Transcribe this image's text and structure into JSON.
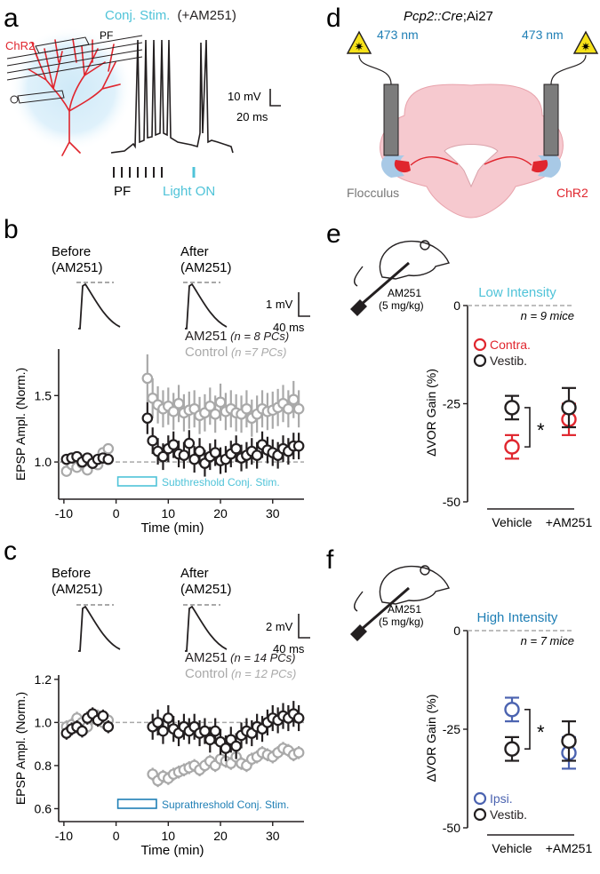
{
  "panels": {
    "a": {
      "letter": "a",
      "title_main": "Conj. Stim.",
      "title_drug": "(+AM251)",
      "pf_label": "PF",
      "chr2_label": "ChR2",
      "pf_axis_label": "PF",
      "light_label": "Light ON",
      "scale_v": "10 mV",
      "scale_t": "20 ms"
    },
    "b": {
      "letter": "b",
      "before_label_1": "Before",
      "before_label_2": "(AM251)",
      "after_label_1": "After",
      "after_label_2": "(AM251)",
      "scale_v": "1 mV",
      "scale_t": "40 ms"
    },
    "c": {
      "letter": "c",
      "before_label_1": "Before",
      "before_label_2": "(AM251)",
      "after_label_1": "After",
      "after_label_2": "(AM251)",
      "scale_v": "2 mV",
      "scale_t": "40 ms"
    },
    "d": {
      "letter": "d",
      "genotype_1": "Pcp2::Cre",
      "genotype_2": ";Ai27",
      "laser_left": "473 nm",
      "laser_right": "473 nm",
      "flocculus_label": "Flocculus",
      "chr2_label": "ChR2"
    },
    "e": {
      "letter": "e",
      "drug_1": "AM251",
      "drug_2": "(5 mg/kg)"
    },
    "f": {
      "letter": "f",
      "drug_1": "AM251",
      "drug_2": "(5 mg/kg)"
    }
  },
  "colors": {
    "black": "#231f20",
    "gray": "#a9a9a9",
    "cyan": "#4fc3d8",
    "blue": "#1f7fb5",
    "red": "#e0262e",
    "purple_blue": "#4b63b0",
    "brain_pink": "#f6c9cf"
  },
  "chart_data": [
    {
      "id": "b",
      "type": "scatter",
      "xlabel": "Time (min)",
      "ylabel": "EPSP Ampl. (Norm.)",
      "xlim": [
        -11,
        36
      ],
      "ylim": [
        0.72,
        1.85
      ],
      "xticks": [
        -10,
        0,
        10,
        20,
        30
      ],
      "xtick_labels": [
        "-10",
        "0",
        "10",
        "20",
        "30"
      ],
      "yticks": [
        1.0,
        1.5
      ],
      "ytick_labels": [
        "1.0",
        "1.5"
      ],
      "baseline": 1.0,
      "stim_label": "Subthreshold Conj. Stim.",
      "stim_x": [
        0,
        5
      ],
      "series": [
        {
          "name": "AM251",
          "n_label": "(n = 8 PCs)",
          "color": "#231f20",
          "x": [
            -9.5,
            -8.5,
            -7.5,
            -6.5,
            -5.5,
            -4.5,
            -3.5,
            -2.5,
            -1.5,
            6,
            7,
            8,
            9,
            10,
            11,
            12,
            13,
            14,
            15,
            16,
            17,
            18,
            19,
            20,
            21,
            22,
            23,
            24,
            25,
            26,
            27,
            28,
            29,
            30,
            31,
            32,
            33,
            34,
            35
          ],
          "y": [
            1.02,
            1.03,
            1.04,
            1.0,
            1.03,
            0.99,
            1.02,
            1.03,
            1.02,
            1.33,
            1.16,
            1.08,
            1.04,
            1.1,
            1.13,
            1.06,
            1.05,
            1.14,
            1.02,
            1.08,
            0.99,
            1.04,
            1.07,
            1.01,
            1.02,
            1.06,
            1.1,
            1.03,
            1.05,
            1.08,
            1.05,
            1.13,
            1.09,
            1.07,
            1.05,
            1.1,
            1.08,
            1.12,
            1.12
          ],
          "err": [
            0.04,
            0.04,
            0.04,
            0.04,
            0.04,
            0.04,
            0.04,
            0.04,
            0.04,
            0.12,
            0.1,
            0.1,
            0.1,
            0.1,
            0.1,
            0.1,
            0.1,
            0.1,
            0.1,
            0.1,
            0.1,
            0.1,
            0.1,
            0.1,
            0.1,
            0.1,
            0.1,
            0.1,
            0.1,
            0.1,
            0.1,
            0.1,
            0.1,
            0.1,
            0.1,
            0.1,
            0.1,
            0.1,
            0.1
          ]
        },
        {
          "name": "Control",
          "n_label": "(n =7 PCs)",
          "color": "#a9a9a9",
          "x": [
            -9.5,
            -8.5,
            -7.5,
            -6.5,
            -5.5,
            -4.5,
            -3.5,
            -2.5,
            -1.5,
            6,
            7,
            8,
            9,
            10,
            11,
            12,
            13,
            14,
            15,
            16,
            17,
            18,
            19,
            20,
            21,
            22,
            23,
            24,
            25,
            26,
            27,
            28,
            29,
            30,
            31,
            32,
            33,
            34,
            35
          ],
          "y": [
            0.93,
            0.98,
            0.96,
            0.99,
            0.94,
            1.0,
            0.98,
            1.07,
            1.1,
            1.63,
            1.48,
            1.43,
            1.4,
            1.42,
            1.38,
            1.44,
            1.37,
            1.39,
            1.4,
            1.35,
            1.37,
            1.42,
            1.36,
            1.45,
            1.38,
            1.4,
            1.37,
            1.36,
            1.4,
            1.33,
            1.36,
            1.4,
            1.38,
            1.39,
            1.41,
            1.44,
            1.4,
            1.47,
            1.4
          ],
          "err": [
            0.04,
            0.04,
            0.04,
            0.04,
            0.04,
            0.04,
            0.04,
            0.04,
            0.04,
            0.18,
            0.15,
            0.14,
            0.14,
            0.14,
            0.14,
            0.14,
            0.14,
            0.14,
            0.14,
            0.14,
            0.14,
            0.14,
            0.14,
            0.14,
            0.14,
            0.14,
            0.14,
            0.14,
            0.14,
            0.14,
            0.14,
            0.14,
            0.14,
            0.14,
            0.14,
            0.14,
            0.14,
            0.14,
            0.14
          ]
        }
      ]
    },
    {
      "id": "c",
      "type": "scatter",
      "xlabel": "Time (min)",
      "ylabel": "EPSP Ampl. (Norm.)",
      "xlim": [
        -11,
        36
      ],
      "ylim": [
        0.54,
        1.22
      ],
      "xticks": [
        -10,
        0,
        10,
        20,
        30
      ],
      "xtick_labels": [
        "-10",
        "0",
        "10",
        "20",
        "30"
      ],
      "yticks": [
        0.6,
        0.8,
        1.0,
        1.2
      ],
      "ytick_labels": [
        "0.6",
        "0.8",
        "1.0",
        "1.2"
      ],
      "baseline": 1.0,
      "stim_label": "Suprathreshold Conj. Stim.",
      "stim_x": [
        0,
        5
      ],
      "series": [
        {
          "name": "AM251",
          "n_label": "(n = 14 PCs)",
          "color": "#231f20",
          "x": [
            -9.5,
            -8.5,
            -7.5,
            -6.5,
            -5.5,
            -4.5,
            -3.5,
            -2.5,
            -1.5,
            7,
            8,
            9,
            10,
            11,
            12,
            13,
            14,
            15,
            16,
            17,
            18,
            19,
            20,
            21,
            22,
            23,
            24,
            25,
            26,
            27,
            28,
            29,
            30,
            31,
            32,
            33,
            34,
            35
          ],
          "y": [
            0.95,
            0.97,
            0.98,
            0.96,
            1.02,
            1.04,
            1.01,
            1.03,
            0.98,
            0.98,
            1.0,
            0.96,
            1.02,
            0.97,
            0.95,
            0.98,
            0.96,
            0.98,
            0.95,
            0.96,
            0.92,
            0.96,
            0.91,
            0.88,
            0.92,
            0.89,
            0.94,
            0.96,
            0.95,
            0.98,
            0.97,
            1.0,
            1.02,
            1.01,
            1.03,
            1.02,
            1.04,
            1.02
          ],
          "err": [
            0.03,
            0.03,
            0.03,
            0.03,
            0.03,
            0.03,
            0.03,
            0.03,
            0.03,
            0.06,
            0.06,
            0.06,
            0.06,
            0.06,
            0.06,
            0.06,
            0.06,
            0.06,
            0.06,
            0.06,
            0.06,
            0.06,
            0.06,
            0.06,
            0.06,
            0.06,
            0.06,
            0.06,
            0.06,
            0.06,
            0.06,
            0.06,
            0.06,
            0.06,
            0.06,
            0.06,
            0.06,
            0.06
          ]
        },
        {
          "name": "Control",
          "n_label": "(n = 12 PCs)",
          "color": "#a9a9a9",
          "x": [
            -9.5,
            -8.5,
            -7.5,
            -6.5,
            -5.5,
            -4.5,
            -3.5,
            -2.5,
            -1.5,
            7,
            8,
            9,
            10,
            11,
            12,
            13,
            14,
            15,
            16,
            17,
            18,
            19,
            20,
            21,
            22,
            23,
            24,
            25,
            26,
            27,
            28,
            29,
            30,
            31,
            32,
            33,
            34,
            35
          ],
          "y": [
            0.98,
            0.99,
            1.02,
            1.0,
            0.98,
            1.02,
            1.03,
            1.0,
            1.01,
            0.76,
            0.73,
            0.75,
            0.74,
            0.76,
            0.77,
            0.78,
            0.79,
            0.8,
            0.78,
            0.8,
            0.82,
            0.8,
            0.83,
            0.82,
            0.81,
            0.84,
            0.81,
            0.8,
            0.83,
            0.84,
            0.86,
            0.85,
            0.84,
            0.86,
            0.88,
            0.87,
            0.85,
            0.86
          ],
          "err": [
            0.03,
            0.03,
            0.03,
            0.03,
            0.03,
            0.03,
            0.03,
            0.03,
            0.03,
            0.03,
            0.03,
            0.03,
            0.03,
            0.03,
            0.03,
            0.03,
            0.03,
            0.03,
            0.03,
            0.03,
            0.03,
            0.03,
            0.03,
            0.03,
            0.03,
            0.03,
            0.03,
            0.03,
            0.03,
            0.03,
            0.03,
            0.03,
            0.03,
            0.03,
            0.03,
            0.03,
            0.03,
            0.03
          ]
        }
      ]
    },
    {
      "id": "e",
      "type": "scatter",
      "title": "Low Intensity",
      "title_color": "#4fc3d8",
      "ylabel": "ΔVOR Gain (%)",
      "categories": [
        "Vehicle",
        "+AM251"
      ],
      "ylim": [
        -50,
        0
      ],
      "yticks": [
        0,
        -25,
        -50
      ],
      "ytick_labels": [
        "0",
        "-25",
        "-50"
      ],
      "n_label": "n = 9 mice",
      "significance": "*",
      "series": [
        {
          "name": "Contra.",
          "color": "#e0262e",
          "values": [
            -36,
            -29
          ],
          "errors": [
            3,
            4
          ]
        },
        {
          "name": "Vestib.",
          "color": "#231f20",
          "values": [
            -26,
            -26
          ],
          "errors": [
            3,
            5
          ]
        }
      ]
    },
    {
      "id": "f",
      "type": "scatter",
      "title": "High Intensity",
      "title_color": "#1f7fb5",
      "ylabel": "ΔVOR Gain (%)",
      "categories": [
        "Vehicle",
        "+AM251"
      ],
      "ylim": [
        -50,
        0
      ],
      "yticks": [
        0,
        -25,
        -50
      ],
      "ytick_labels": [
        "0",
        "-25",
        "-50"
      ],
      "n_label": "n = 7 mice",
      "significance": "*",
      "series": [
        {
          "name": "Ipsi.",
          "color": "#4b63b0",
          "values": [
            -20,
            -31
          ],
          "errors": [
            3,
            4
          ]
        },
        {
          "name": "Vestib.",
          "color": "#231f20",
          "values": [
            -30,
            -28
          ],
          "errors": [
            3,
            5
          ]
        }
      ]
    }
  ]
}
